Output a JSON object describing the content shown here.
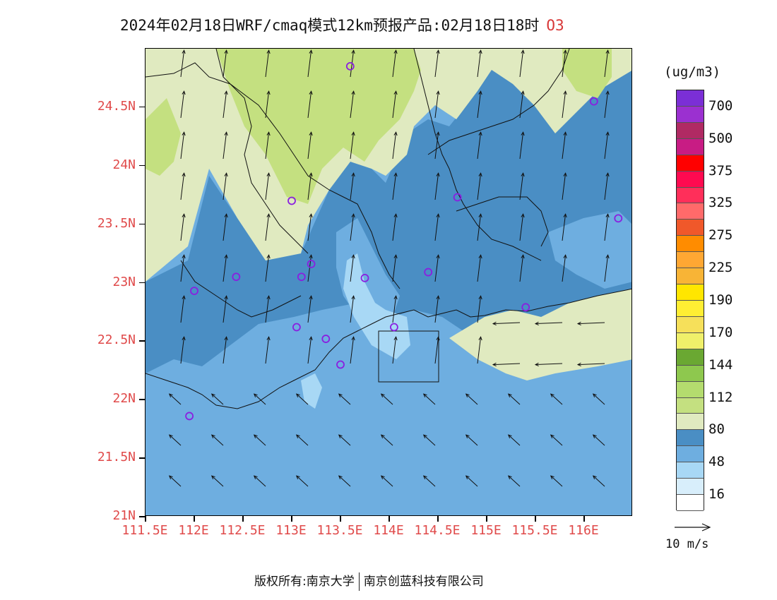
{
  "title": {
    "text": "2024年02月18日WRF/cmaq模式12km预报产品:02月18日18时",
    "species": "O3"
  },
  "axes": {
    "lat_labels": [
      "24.5N",
      "24N",
      "23.5N",
      "23N",
      "22.5N",
      "22N",
      "21.5N",
      "21N"
    ],
    "lon_labels": [
      "111.5E",
      "112E",
      "112.5E",
      "113E",
      "113.5E",
      "114E",
      "114.5E",
      "115E",
      "115.5E",
      "116E"
    ]
  },
  "colorbar": {
    "units": "(ug/m3)",
    "colors": [
      "#7b2fd6",
      "#9b30d0",
      "#b02a63",
      "#c81c84",
      "#ff0000",
      "#ff0a50",
      "#ff2f5a",
      "#ff6a6a",
      "#f0582a",
      "#ff8c00",
      "#ffa733",
      "#f8b436",
      "#ffe600",
      "#ffee33",
      "#f6e05a",
      "#f0f06a",
      "#6aa832",
      "#8ec84e",
      "#b4dc6e",
      "#c4e080",
      "#e0eac0",
      "#4a8ec4",
      "#6eaee0",
      "#a8d8f5",
      "#d8eefb",
      "#ffffff"
    ],
    "labels": [
      "700",
      "500",
      "375",
      "325",
      "275",
      "225",
      "190",
      "170",
      "144",
      "112",
      "80",
      "48",
      "16"
    ]
  },
  "wind_legend": {
    "text": "10 m/s"
  },
  "stations": [
    {
      "lon": 113.6,
      "lat": 24.85
    },
    {
      "lon": 116.1,
      "lat": 24.55
    },
    {
      "lon": 113.0,
      "lat": 23.7
    },
    {
      "lon": 114.7,
      "lat": 23.73
    },
    {
      "lon": 116.35,
      "lat": 23.55
    },
    {
      "lon": 113.2,
      "lat": 23.16
    },
    {
      "lon": 112.43,
      "lat": 23.05
    },
    {
      "lon": 113.1,
      "lat": 23.05
    },
    {
      "lon": 113.75,
      "lat": 23.04
    },
    {
      "lon": 114.4,
      "lat": 23.09
    },
    {
      "lon": 112.0,
      "lat": 22.93
    },
    {
      "lon": 115.4,
      "lat": 22.79
    },
    {
      "lon": 113.05,
      "lat": 22.62
    },
    {
      "lon": 114.05,
      "lat": 22.62
    },
    {
      "lon": 113.35,
      "lat": 22.52
    },
    {
      "lon": 113.5,
      "lat": 22.3
    },
    {
      "lon": 111.95,
      "lat": 21.86
    }
  ],
  "footer": {
    "left": "版权所有:南京大学",
    "right": "南京创蓝科技有限公司"
  }
}
